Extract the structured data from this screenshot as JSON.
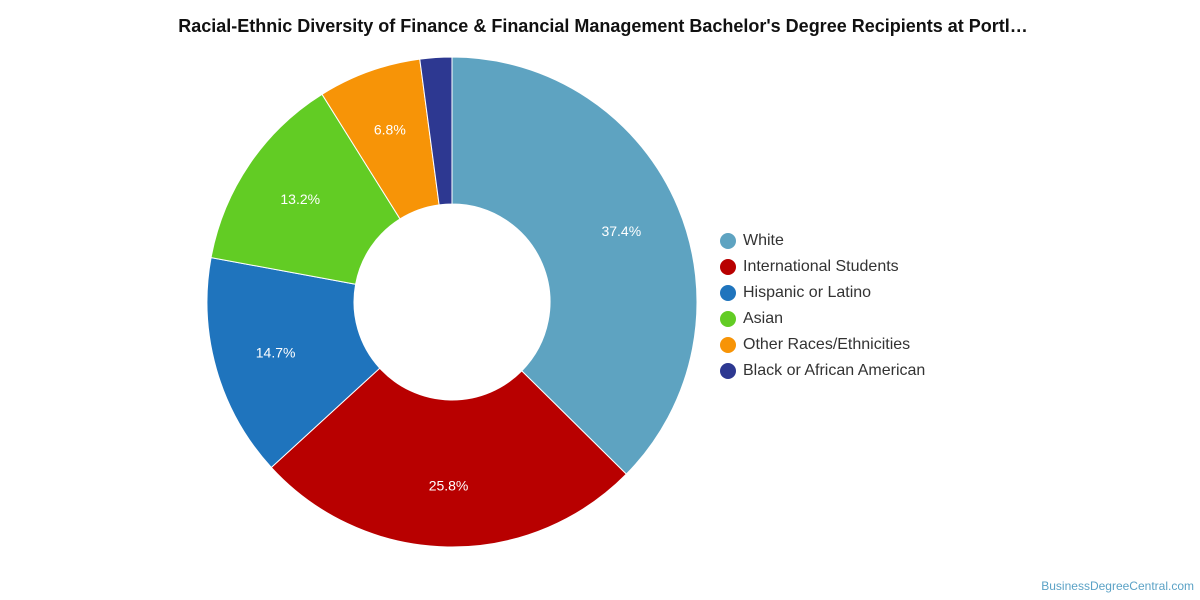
{
  "chart_data": {
    "type": "pie",
    "donut": true,
    "title": "Racial-Ethnic Diversity of Finance & Financial Management Bachelor's Degree Recipients at Portl…",
    "categories": [
      "White",
      "International Students",
      "Hispanic or Latino",
      "Asian",
      "Other Races/Ethnicities",
      "Black or African American"
    ],
    "values": [
      37.4,
      25.8,
      14.7,
      13.2,
      6.8,
      2.1
    ],
    "data_labels": [
      "37.4%",
      "25.8%",
      "14.7%",
      "13.2%",
      "6.8%",
      ""
    ],
    "colors": [
      "#5ea3c1",
      "#b80000",
      "#1f74bd",
      "#62cc24",
      "#f79407",
      "#2d3891"
    ],
    "legend_position": "right"
  },
  "credit": "BusinessDegreeCentral.com"
}
